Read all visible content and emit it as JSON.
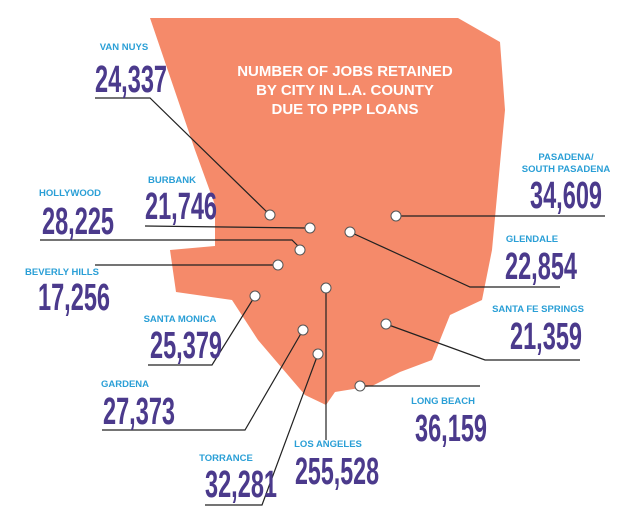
{
  "title_lines": [
    "NUMBER OF JOBS RETAINED",
    "BY CITY IN L.A. COUNTY",
    "DUE TO PPP LOANS"
  ],
  "cities": [
    {
      "name_lines": [
        "VAN NUYS"
      ],
      "jobs": "24,337"
    },
    {
      "name_lines": [
        "PASADENA/",
        "SOUTH PASADENA"
      ],
      "jobs": "34,609"
    },
    {
      "name_lines": [
        "HOLLYWOOD"
      ],
      "jobs": "28,225"
    },
    {
      "name_lines": [
        "BURBANK"
      ],
      "jobs": "21,746"
    },
    {
      "name_lines": [
        "BEVERLY HILLS"
      ],
      "jobs": "17,256"
    },
    {
      "name_lines": [
        "GLENDALE"
      ],
      "jobs": "22,854"
    },
    {
      "name_lines": [
        "SANTA MONICA"
      ],
      "jobs": "25,379"
    },
    {
      "name_lines": [
        "SANTA FE SPRINGS"
      ],
      "jobs": "21,359"
    },
    {
      "name_lines": [
        "GARDENA"
      ],
      "jobs": "27,373"
    },
    {
      "name_lines": [
        "LONG BEACH"
      ],
      "jobs": "36,159"
    },
    {
      "name_lines": [
        "LOS ANGELES"
      ],
      "jobs": "255,528"
    },
    {
      "name_lines": [
        "TORRANCE"
      ],
      "jobs": "32,281"
    }
  ]
}
